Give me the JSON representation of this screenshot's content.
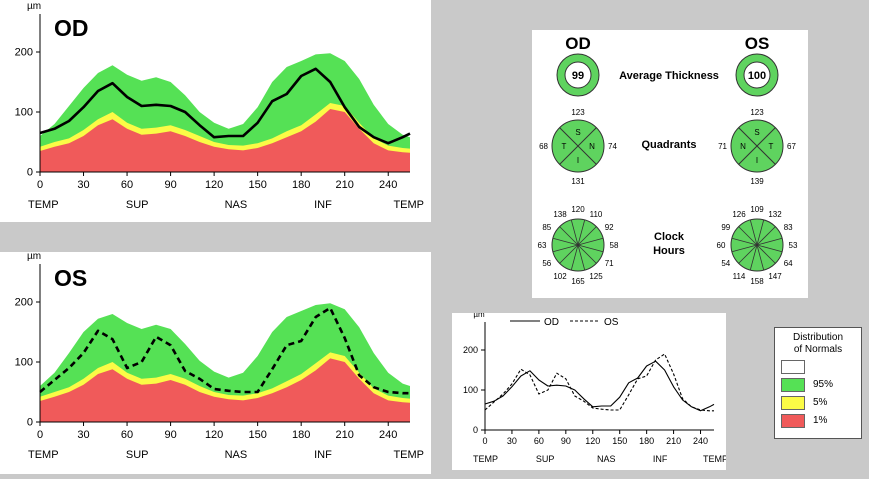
{
  "chart_data": [
    {
      "type": "area",
      "panel": "od",
      "title": "OD",
      "ylabel": "µm",
      "ylim": [
        0,
        250
      ],
      "yticks": [
        0,
        100,
        200
      ],
      "xlim": [
        0,
        255
      ],
      "xticks": [
        0,
        30,
        60,
        90,
        120,
        150,
        180,
        210,
        240
      ],
      "region_labels": [
        "TEMP",
        "SUP",
        "NAS",
        "INF",
        "TEMP"
      ],
      "x": [
        0,
        10,
        20,
        30,
        40,
        50,
        60,
        70,
        80,
        90,
        100,
        110,
        120,
        130,
        140,
        150,
        160,
        170,
        180,
        190,
        200,
        210,
        220,
        230,
        240,
        250,
        255
      ],
      "series": [
        {
          "name": "1%",
          "values": [
            35,
            42,
            48,
            60,
            78,
            88,
            72,
            62,
            64,
            68,
            60,
            50,
            42,
            38,
            36,
            40,
            48,
            58,
            68,
            84,
            105,
            100,
            72,
            48,
            36,
            33,
            32
          ]
        },
        {
          "name": "5%",
          "values": [
            42,
            50,
            56,
            70,
            88,
            100,
            82,
            72,
            74,
            78,
            70,
            60,
            50,
            45,
            44,
            48,
            56,
            68,
            78,
            96,
            115,
            110,
            82,
            56,
            44,
            40,
            39
          ]
        },
        {
          "name": "95%",
          "values": [
            60,
            80,
            110,
            140,
            165,
            178,
            162,
            152,
            158,
            150,
            128,
            100,
            82,
            72,
            80,
            108,
            150,
            175,
            185,
            196,
            198,
            185,
            155,
            112,
            80,
            62,
            58
          ]
        },
        {
          "name": "OD",
          "values": [
            65,
            72,
            85,
            108,
            135,
            148,
            125,
            110,
            112,
            110,
            100,
            78,
            58,
            60,
            60,
            82,
            118,
            130,
            160,
            172,
            150,
            108,
            75,
            58,
            48,
            58,
            64
          ]
        }
      ]
    },
    {
      "type": "area",
      "panel": "os",
      "title": "OS",
      "ylabel": "µm",
      "ylim": [
        0,
        250
      ],
      "yticks": [
        0,
        100,
        200
      ],
      "xlim": [
        0,
        255
      ],
      "xticks": [
        0,
        30,
        60,
        90,
        120,
        150,
        180,
        210,
        240
      ],
      "region_labels": [
        "TEMP",
        "SUP",
        "NAS",
        "INF",
        "TEMP"
      ],
      "x": [
        0,
        10,
        20,
        30,
        40,
        50,
        60,
        70,
        80,
        90,
        100,
        110,
        120,
        130,
        140,
        150,
        160,
        170,
        180,
        190,
        200,
        210,
        220,
        230,
        240,
        250,
        255
      ],
      "series": [
        {
          "name": "1%",
          "values": [
            35,
            42,
            50,
            62,
            80,
            88,
            72,
            62,
            64,
            70,
            62,
            50,
            42,
            38,
            36,
            40,
            48,
            58,
            70,
            86,
            106,
            100,
            72,
            48,
            36,
            33,
            32
          ]
        },
        {
          "name": "5%",
          "values": [
            42,
            50,
            58,
            72,
            90,
            100,
            82,
            72,
            74,
            80,
            72,
            60,
            50,
            45,
            44,
            48,
            56,
            68,
            80,
            98,
            116,
            110,
            82,
            56,
            44,
            40,
            39
          ]
        },
        {
          "name": "95%",
          "values": [
            60,
            82,
            115,
            150,
            172,
            180,
            165,
            155,
            162,
            155,
            130,
            102,
            84,
            74,
            82,
            110,
            150,
            175,
            185,
            195,
            198,
            188,
            158,
            115,
            82,
            64,
            60
          ]
        },
        {
          "name": "OS",
          "values": [
            50,
            70,
            90,
            115,
            152,
            138,
            90,
            100,
            142,
            128,
            85,
            72,
            55,
            52,
            50,
            50,
            88,
            128,
            135,
            175,
            190,
            140,
            78,
            58,
            50,
            48,
            48
          ]
        }
      ]
    },
    {
      "type": "line",
      "panel": "compare",
      "ylabel": "µm",
      "ylim": [
        0,
        250
      ],
      "yticks": [
        0,
        100,
        200
      ],
      "xlim": [
        0,
        255
      ],
      "xticks": [
        0,
        30,
        60,
        90,
        120,
        150,
        180,
        210,
        240
      ],
      "region_labels": [
        "TEMP",
        "SUP",
        "NAS",
        "INF",
        "TEMP"
      ],
      "x": [
        0,
        10,
        20,
        30,
        40,
        50,
        60,
        70,
        80,
        90,
        100,
        110,
        120,
        130,
        140,
        150,
        160,
        170,
        180,
        190,
        200,
        210,
        220,
        230,
        240,
        250,
        255
      ],
      "series": [
        {
          "name": "OD",
          "values": [
            65,
            72,
            85,
            108,
            135,
            148,
            125,
            110,
            112,
            110,
            100,
            78,
            58,
            60,
            60,
            82,
            118,
            130,
            160,
            172,
            150,
            108,
            75,
            58,
            48,
            58,
            64
          ]
        },
        {
          "name": "OS",
          "values": [
            50,
            70,
            90,
            115,
            152,
            138,
            90,
            100,
            142,
            128,
            85,
            72,
            55,
            52,
            50,
            50,
            88,
            128,
            135,
            175,
            190,
            140,
            78,
            58,
            50,
            48,
            48
          ]
        }
      ]
    }
  ],
  "summary": {
    "od_label": "OD",
    "os_label": "OS",
    "average_label": "Average Thickness",
    "quadrants_label": "Quadrants",
    "clock_label_1": "Clock",
    "clock_label_2": "Hours",
    "od_average": "99",
    "os_average": "100",
    "od_quadrants": {
      "top": "123",
      "left": "68",
      "right": "74",
      "bottom": "131",
      "letters": [
        "S",
        "T",
        "N",
        "I"
      ]
    },
    "os_quadrants": {
      "top": "123",
      "left": "71",
      "right": "67",
      "bottom": "139",
      "letters": [
        "S",
        "N",
        "T",
        "I"
      ]
    },
    "od_clock": [
      "120",
      "110",
      "92",
      "58",
      "71",
      "125",
      "165",
      "102",
      "56",
      "63",
      "85",
      "138"
    ],
    "os_clock": [
      "109",
      "132",
      "83",
      "53",
      "64",
      "147",
      "158",
      "114",
      "54",
      "60",
      "99",
      "126"
    ]
  },
  "legend": {
    "title_1": "Distribution",
    "title_2": "of Normals",
    "items": [
      {
        "label": "",
        "color": "#ffffff"
      },
      {
        "label": "95%",
        "color": "#55e155"
      },
      {
        "label": "5%",
        "color": "#fbfb46"
      },
      {
        "label": "1%",
        "color": "#f05a5a"
      }
    ]
  },
  "colors": {
    "red": "#f05a5a",
    "yellow": "#fbfb46",
    "green": "#55e155",
    "sector_green": "#5fd35f",
    "ring_green": "#5fd35f"
  }
}
